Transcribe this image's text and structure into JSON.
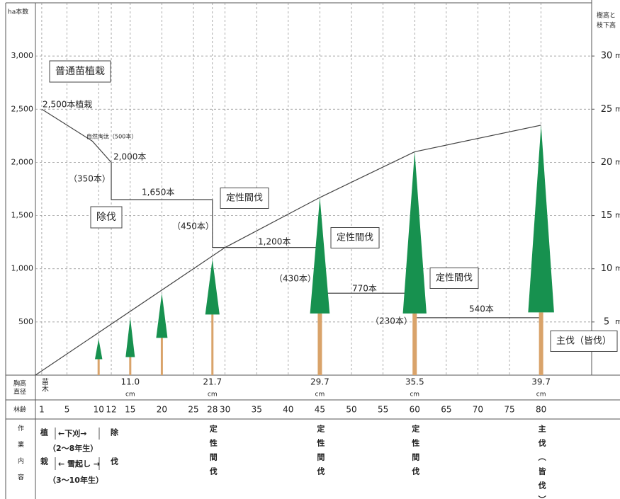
{
  "chart_data": {
    "type": "line",
    "y_label": "ha本数",
    "y2_label": [
      "樹高と",
      "枝下高"
    ],
    "y2_unit": "m",
    "x_label": "林齢",
    "xlim": [
      0,
      88
    ],
    "xticks": [
      1,
      5,
      10,
      12,
      15,
      20,
      25,
      28,
      30,
      35,
      40,
      45,
      50,
      55,
      60,
      65,
      70,
      75,
      80
    ],
    "ylim": [
      0,
      3500
    ],
    "yticks": [
      500,
      {
        "value": 1000,
        "label": "1,000"
      },
      {
        "value": 1500,
        "label": "1,500"
      },
      {
        "value": 2000,
        "label": "2,000"
      },
      {
        "value": 2500,
        "label": "2,500"
      },
      {
        "value": 3000,
        "label": "3,000"
      }
    ],
    "y2lim": [
      0,
      35
    ],
    "y2ticks": [
      5,
      10,
      15,
      20,
      25,
      30
    ],
    "grid": true,
    "series": [
      {
        "x": [
          1,
          9,
          12,
          12,
          28,
          28,
          45,
          45,
          60,
          60,
          80,
          80
        ],
        "values": [
          2500,
          2200,
          2000,
          1650,
          1650,
          1200,
          1200,
          770,
          770,
          540,
          540,
          0
        ],
        "color": "#444444"
      },
      {
        "x": [
          0,
          30,
          45,
          60,
          80
        ],
        "values": [
          0,
          12,
          16.7,
          21,
          23.5
        ],
        "color": "#444444",
        "axis": "y2"
      }
    ],
    "trees": {
      "x": [
        10,
        15,
        20,
        28,
        45,
        60,
        80
      ],
      "height": [
        3.4,
        5.4,
        7.7,
        10.9,
        16.7,
        21,
        23.5
      ],
      "crown_base": [
        1.5,
        1.7,
        3.5,
        5.7,
        5.8,
        5.8,
        5.9
      ],
      "color": "#17914f",
      "trunk_color": "#d9a36a",
      "axis": "y2"
    },
    "annotations": [
      {
        "text": "普通苗植栽",
        "boxed": true
      },
      {
        "text": "2,500本植栽",
        "boxed": false
      },
      {
        "text": "自然淘汰（500本）",
        "boxed": false
      },
      {
        "text": "2,000本",
        "boxed": false
      },
      {
        "text": "（350本）",
        "boxed": false
      },
      {
        "text": "1,650本",
        "boxed": false
      },
      {
        "text": "除伐",
        "boxed": true
      },
      {
        "text": "定性間伐",
        "boxed": true
      },
      {
        "text": "（450本）",
        "boxed": false
      },
      {
        "text": "1,200本",
        "boxed": false
      },
      {
        "text": "定性間伐",
        "boxed": true
      },
      {
        "text": "（430本）",
        "boxed": false
      },
      {
        "text": "770本",
        "boxed": false
      },
      {
        "text": "定性間伐",
        "boxed": true
      },
      {
        "text": "（230本）",
        "boxed": false
      },
      {
        "text": "540本",
        "boxed": false
      },
      {
        "text": "主伐（皆伐）",
        "boxed": true
      }
    ]
  },
  "table": {
    "dbh": {
      "header": [
        "胸高",
        "直径"
      ],
      "seedling_x": 1,
      "seedling": "苗木",
      "x": [
        15,
        28,
        45,
        60,
        80
      ],
      "values": [
        11.0,
        21.7,
        29.7,
        35.5,
        39.7
      ],
      "value_labels": [
        "11.0",
        "21.7",
        "29.7",
        "35.5",
        "39.7"
      ],
      "unit": "cm"
    },
    "age_header": "林齢",
    "work": {
      "header": "作業内容",
      "planting": "植栽",
      "weeding": "←下刈→",
      "weeding_years": "（2～8年生）",
      "snow": "← 雪起し →",
      "snow_years": "（3～10年生）",
      "cleaning": "除伐",
      "items": [
        {
          "x": 28,
          "text": "定性間伐"
        },
        {
          "x": 45,
          "text": "定性間伐"
        },
        {
          "x": 60,
          "text": "定性間伐"
        },
        {
          "x": 80,
          "text": "主伐（皆伐）"
        }
      ]
    }
  }
}
